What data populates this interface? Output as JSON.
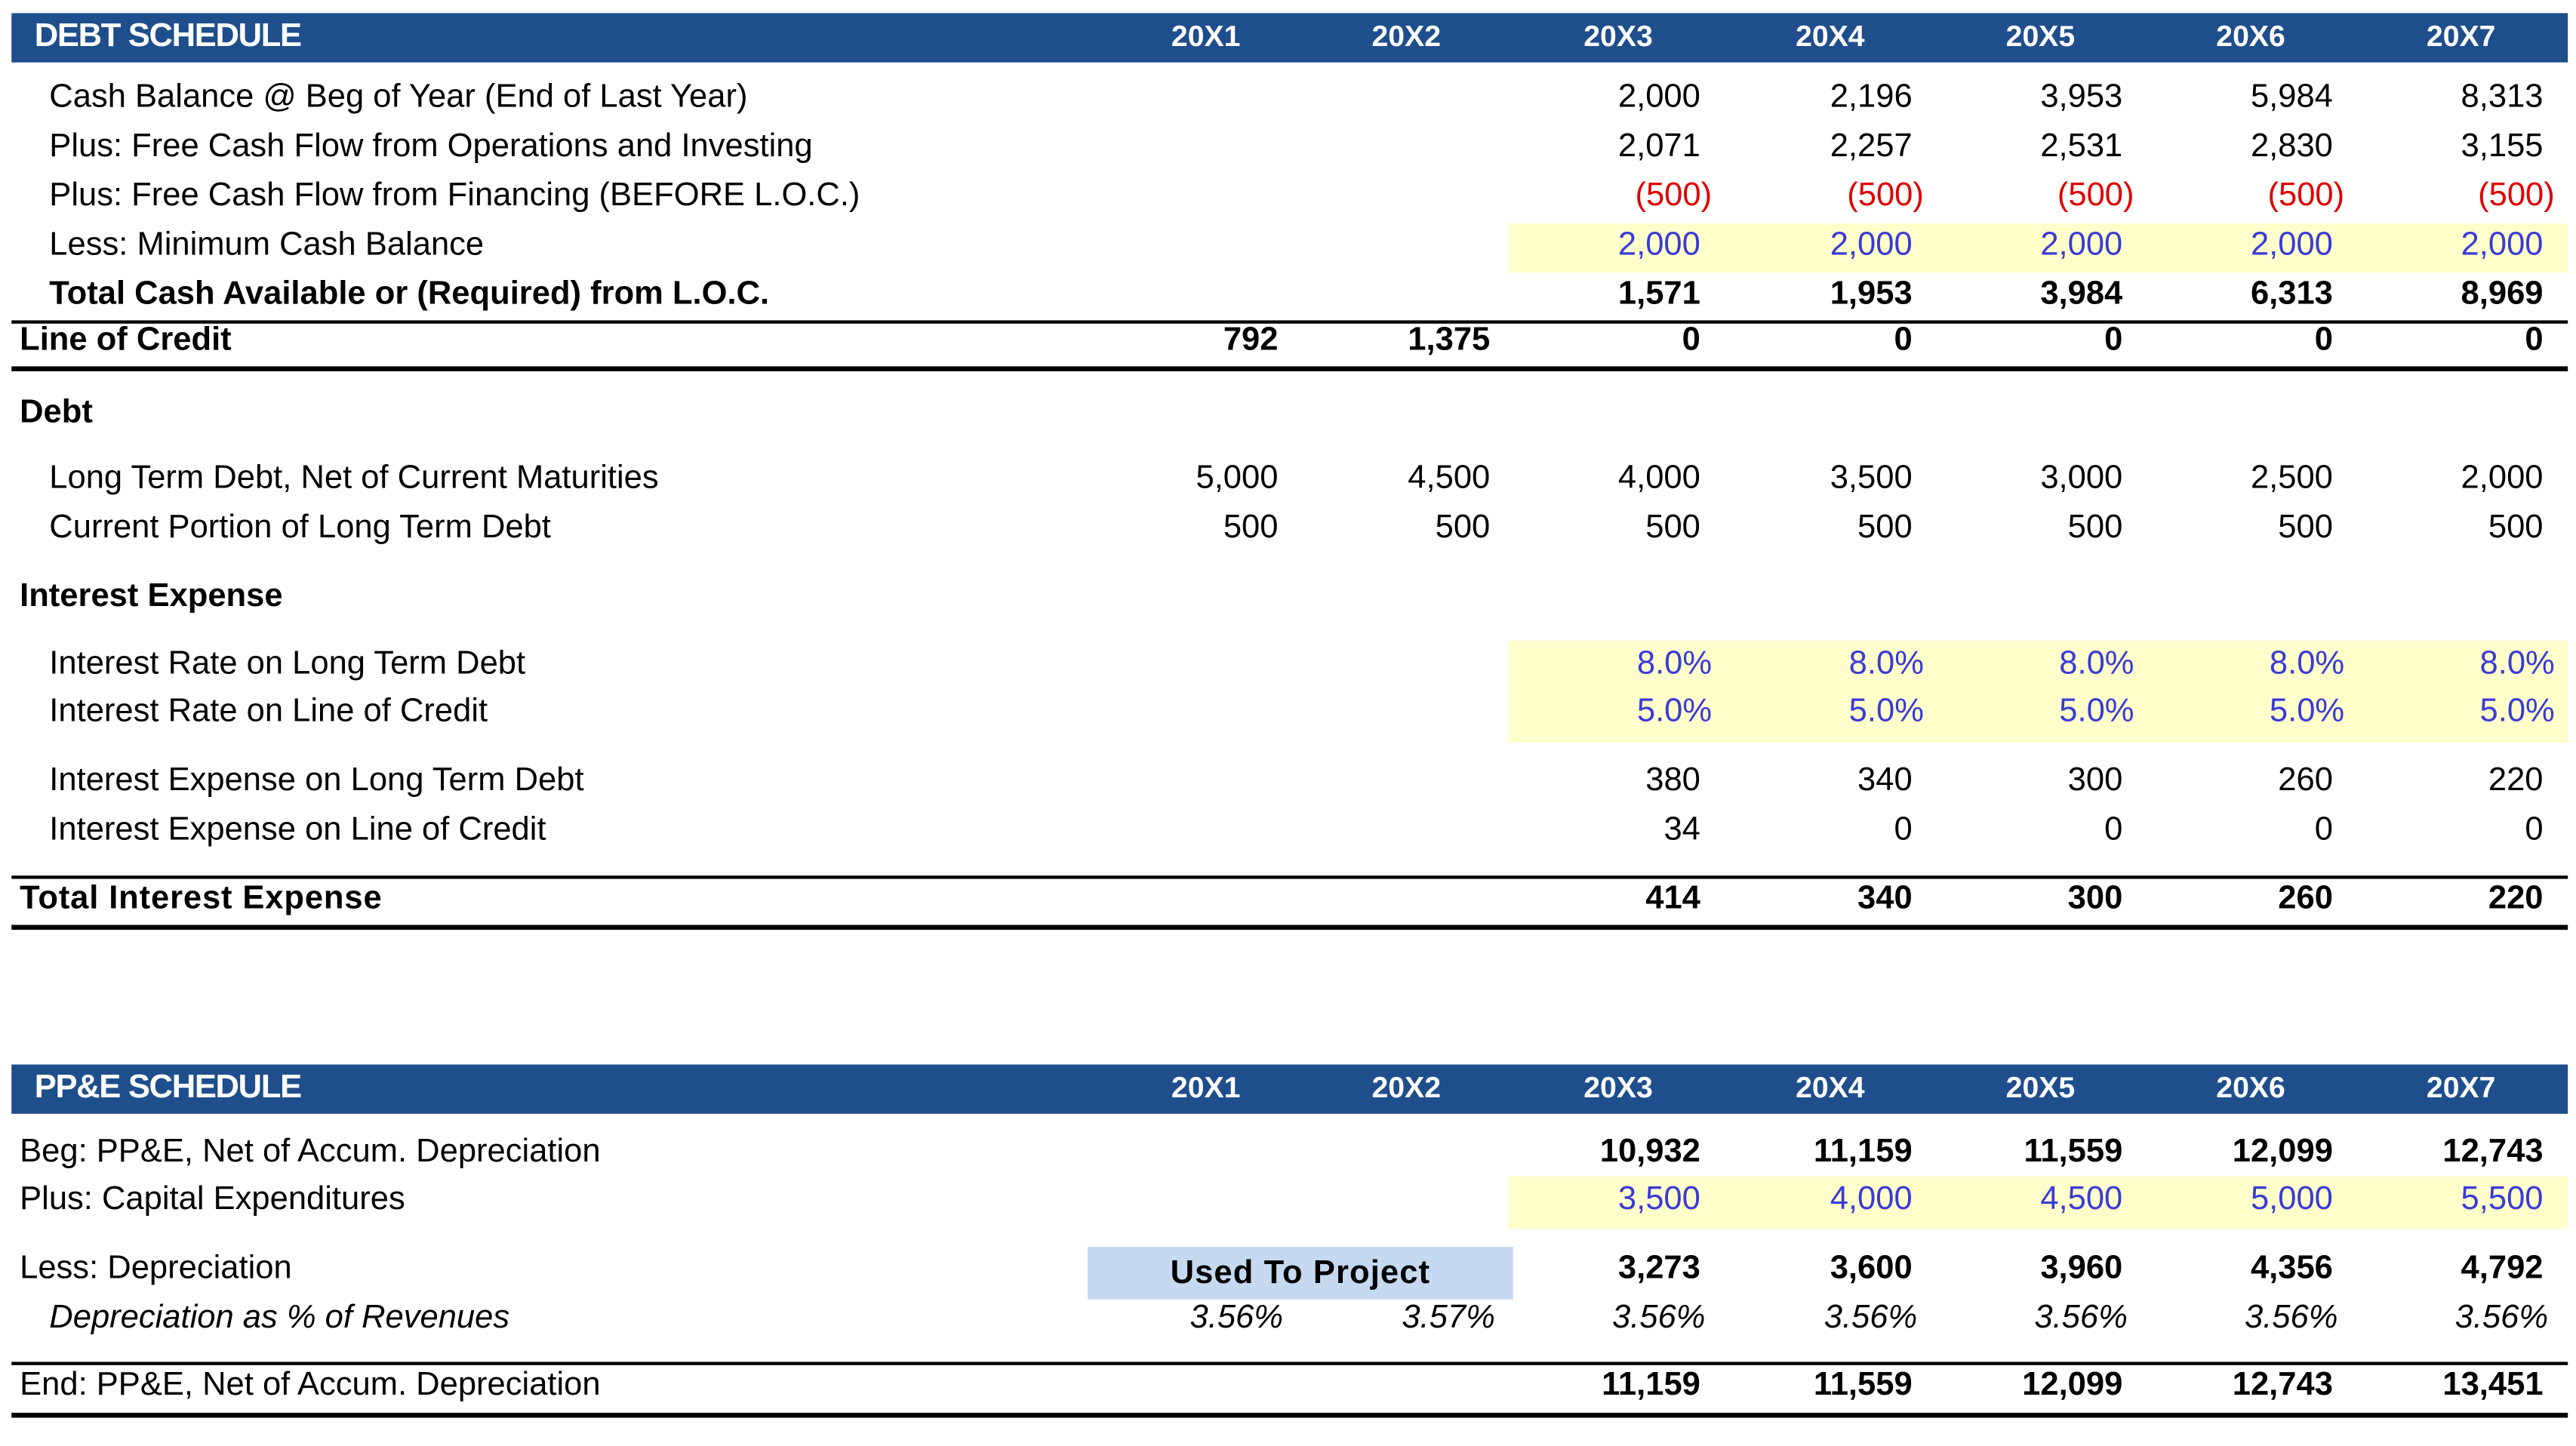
{
  "columns": [
    "20X1",
    "20X2",
    "20X3",
    "20X4",
    "20X5",
    "20X6",
    "20X7"
  ],
  "debt": {
    "title": "DEBT SCHEDULE",
    "rows": {
      "cash_beg": {
        "label": "Cash Balance @ Beg of Year (End of Last Year)",
        "values": [
          "",
          "",
          "2,000",
          "2,196",
          "3,953",
          "5,984",
          "8,313"
        ]
      },
      "fcf_ops": {
        "label": "Plus: Free Cash Flow  from Operations and Investing",
        "values": [
          "",
          "",
          "2,071",
          "2,257",
          "2,531",
          "2,830",
          "3,155"
        ]
      },
      "fcf_fin": {
        "label": "Plus: Free Cash Flow  from Financing (BEFORE L.O.C.)",
        "values": [
          "",
          "",
          "(500)",
          "(500)",
          "(500)",
          "(500)",
          "(500)"
        ]
      },
      "min_cash": {
        "label": "Less: Minimum Cash Balance",
        "values": [
          "",
          "",
          "2,000",
          "2,000",
          "2,000",
          "2,000",
          "2,000"
        ]
      },
      "total_cash": {
        "label": "Total Cash Available or (Required) from L.O.C.",
        "values": [
          "",
          "",
          "1,571",
          "1,953",
          "3,984",
          "6,313",
          "8,969"
        ]
      },
      "loc": {
        "label": "Line of Credit",
        "values": [
          "792",
          "1,375",
          "0",
          "0",
          "0",
          "0",
          "0"
        ]
      }
    },
    "debt_section": "Debt",
    "ltd": {
      "label": "Long Term Debt, Net of Current Maturities",
      "values": [
        "5,000",
        "4,500",
        "4,000",
        "3,500",
        "3,000",
        "2,500",
        "2,000"
      ]
    },
    "cpltd": {
      "label": "Current Portion of Long Term Debt",
      "values": [
        "500",
        "500",
        "500",
        "500",
        "500",
        "500",
        "500"
      ]
    },
    "interest_section": "Interest Expense",
    "rate_ltd": {
      "label": "Interest Rate on Long Term Debt",
      "values": [
        "",
        "",
        "8.0%",
        "8.0%",
        "8.0%",
        "8.0%",
        "8.0%"
      ]
    },
    "rate_loc": {
      "label": "Interest Rate on Line of Credit",
      "values": [
        "",
        "",
        "5.0%",
        "5.0%",
        "5.0%",
        "5.0%",
        "5.0%"
      ]
    },
    "int_ltd": {
      "label": "Interest Expense on Long Term Debt",
      "values": [
        "",
        "",
        "380",
        "340",
        "300",
        "260",
        "220"
      ]
    },
    "int_loc": {
      "label": "Interest Expense on Line of Credit",
      "values": [
        "",
        "",
        "34",
        "0",
        "0",
        "0",
        "0"
      ]
    },
    "total_int": {
      "label": "Total Interest Expense",
      "values": [
        "",
        "",
        "414",
        "340",
        "300",
        "260",
        "220"
      ]
    }
  },
  "ppe": {
    "title": "PP&E SCHEDULE",
    "beg": {
      "label": "Beg: PP&E, Net of Accum. Depreciation",
      "values": [
        "",
        "",
        "10,932",
        "11,159",
        "11,559",
        "12,099",
        "12,743"
      ]
    },
    "capex": {
      "label": "Plus: Capital Expenditures",
      "values": [
        "",
        "",
        "3,500",
        "4,000",
        "4,500",
        "5,000",
        "5,500"
      ]
    },
    "dep": {
      "label": "Less: Depreciation",
      "values": [
        "",
        "",
        "3,273",
        "3,600",
        "3,960",
        "4,356",
        "4,792"
      ]
    },
    "used_to_project": "Used To Project",
    "dep_pct": {
      "label": "Depreciation as % of Revenues",
      "values": [
        "3.56%",
        "3.57%",
        "3.56%",
        "3.56%",
        "3.56%",
        "3.56%",
        "3.56%"
      ]
    },
    "end": {
      "label": "End: PP&E, Net of Accum. Depreciation",
      "values": [
        "",
        "",
        "11,159",
        "11,559",
        "12,099",
        "12,743",
        "13,451"
      ]
    }
  }
}
